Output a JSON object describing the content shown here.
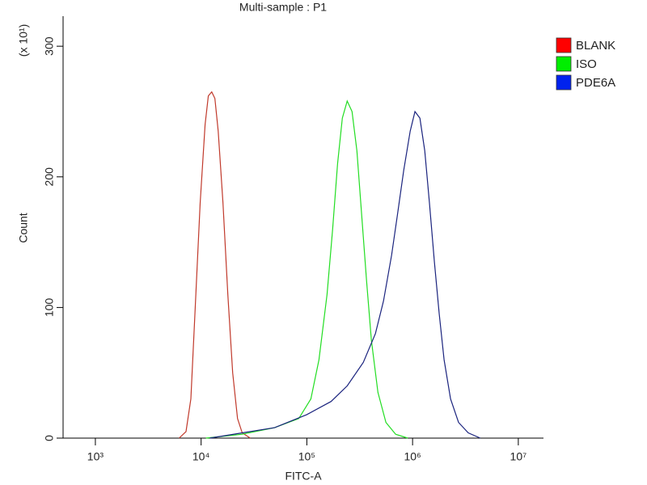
{
  "chart_data": {
    "type": "line",
    "title": "Multi-sample : P1",
    "xlabel": "FITC-A",
    "ylabel": "Count",
    "y_multiplier": "(x 10¹)",
    "xscale": "log",
    "xlim": [
      495,
      17300000
    ],
    "xticks": [
      {
        "value": 1000,
        "label": "10³"
      },
      {
        "value": 10000,
        "label": "10⁴"
      },
      {
        "value": 100000,
        "label": "10⁵"
      },
      {
        "value": 1000000,
        "label": "10⁶"
      },
      {
        "value": 10000000,
        "label": "10⁷"
      }
    ],
    "ylim": [
      0,
      323
    ],
    "yticks": [
      0,
      100,
      200,
      300
    ],
    "grid": false,
    "legend": "right",
    "series": [
      {
        "name": "BLANK",
        "color": "#c0392b",
        "legend_color": "#ff0000",
        "x": [
          6200,
          7200,
          8000,
          8800,
          9800,
          10900,
          11700,
          12600,
          13500,
          14500,
          16100,
          17900,
          19900,
          22100,
          24500,
          29200
        ],
        "values": [
          0,
          5,
          30,
          100,
          180,
          240,
          262,
          265,
          260,
          235,
          180,
          110,
          50,
          15,
          4,
          0
        ]
      },
      {
        "name": "ISO",
        "color": "#22dd22",
        "legend_color": "#00ee00",
        "x": [
          11100,
          24500,
          49500,
          83900,
          109200,
          130300,
          155300,
          175500,
          195100,
          216800,
          240900,
          267500,
          297300,
          330400,
          367200,
          408000,
          469900,
          559800,
          691800,
          899900
        ],
        "values": [
          0,
          3,
          8,
          15,
          30,
          60,
          110,
          160,
          210,
          245,
          258,
          250,
          220,
          170,
          120,
          75,
          35,
          12,
          3,
          0
        ]
      },
      {
        "name": "PDE6A",
        "color": "#1a237e",
        "legend_color": "#0022ee",
        "x": [
          12100,
          24500,
          49500,
          100000,
          169400,
          240900,
          342000,
          445600,
          530900,
          633400,
          716200,
          824100,
          948800,
          1054000,
          1172000,
          1303000,
          1445000,
          1607000,
          1787000,
          1986000,
          2286000,
          2723000,
          3365000,
          4375000
        ],
        "values": [
          0,
          4,
          8,
          18,
          28,
          40,
          58,
          80,
          105,
          140,
          170,
          205,
          235,
          250,
          245,
          220,
          180,
          135,
          95,
          60,
          30,
          12,
          4,
          0
        ]
      }
    ]
  }
}
